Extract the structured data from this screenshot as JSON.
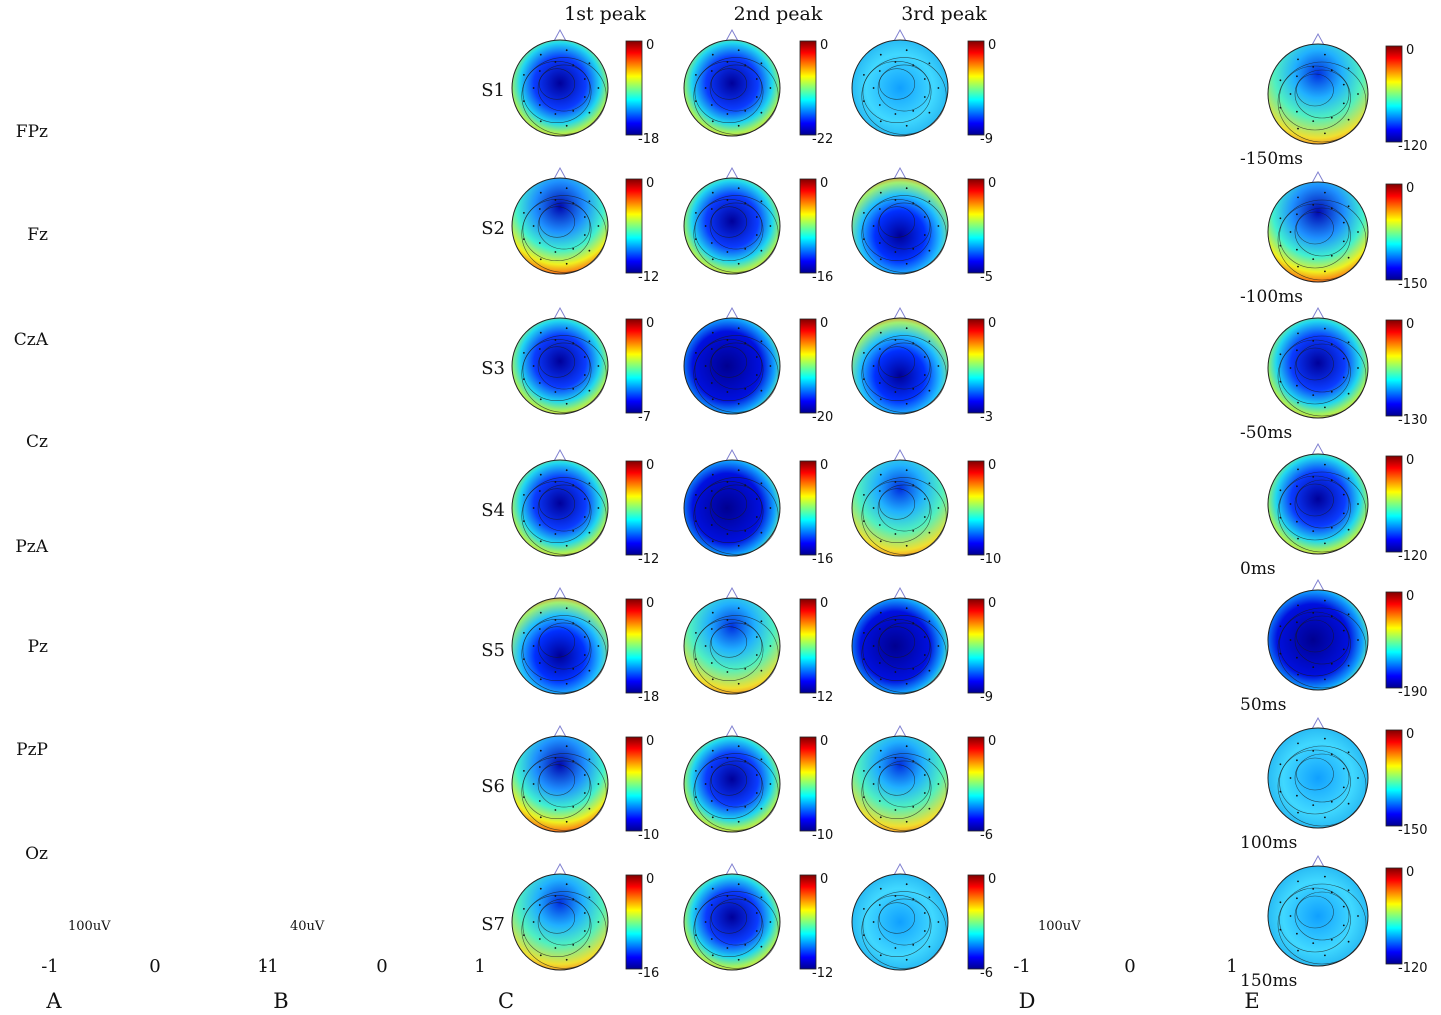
{
  "figure": {
    "panels": [
      "A",
      "B",
      "C",
      "D",
      "E"
    ],
    "channels": [
      "FPz",
      "Fz",
      "CzA",
      "Cz",
      "PzA",
      "Pz",
      "PzP",
      "Oz"
    ],
    "axis_ticks": [
      "-1",
      "0",
      "1"
    ],
    "scale_a": "100uV",
    "scale_b": "40uV",
    "scale_d": "100uV",
    "peak_headers": [
      "1st peak",
      "2nd peak",
      "3rd peak"
    ],
    "subjects": [
      "S1",
      "S2",
      "S3",
      "S4",
      "S5",
      "S6",
      "S7"
    ],
    "colorbar_max": "0",
    "colorbar_mins": [
      [
        "-18",
        "-22",
        "-9"
      ],
      [
        "-12",
        "-16",
        "-5"
      ],
      [
        "-7",
        "-20",
        "-3"
      ],
      [
        "-12",
        "-16",
        "-10"
      ],
      [
        "-18",
        "-12",
        "-9"
      ],
      [
        "-10",
        "-10",
        "-6"
      ],
      [
        "-16",
        "-12",
        "-6"
      ]
    ],
    "time_labels": [
      "-150ms",
      "-100ms",
      "-50ms",
      "0ms",
      "50ms",
      "100ms",
      "150ms"
    ],
    "e_mins": [
      "-120",
      "-150",
      "-130",
      "-120",
      "-190",
      "-150",
      "-120"
    ],
    "colors": {
      "red_line": "#e8606a",
      "blue_line": "#6a6ad0",
      "green_line": "#8ad88a",
      "trace": "#111111",
      "head": "#222222"
    }
  }
}
